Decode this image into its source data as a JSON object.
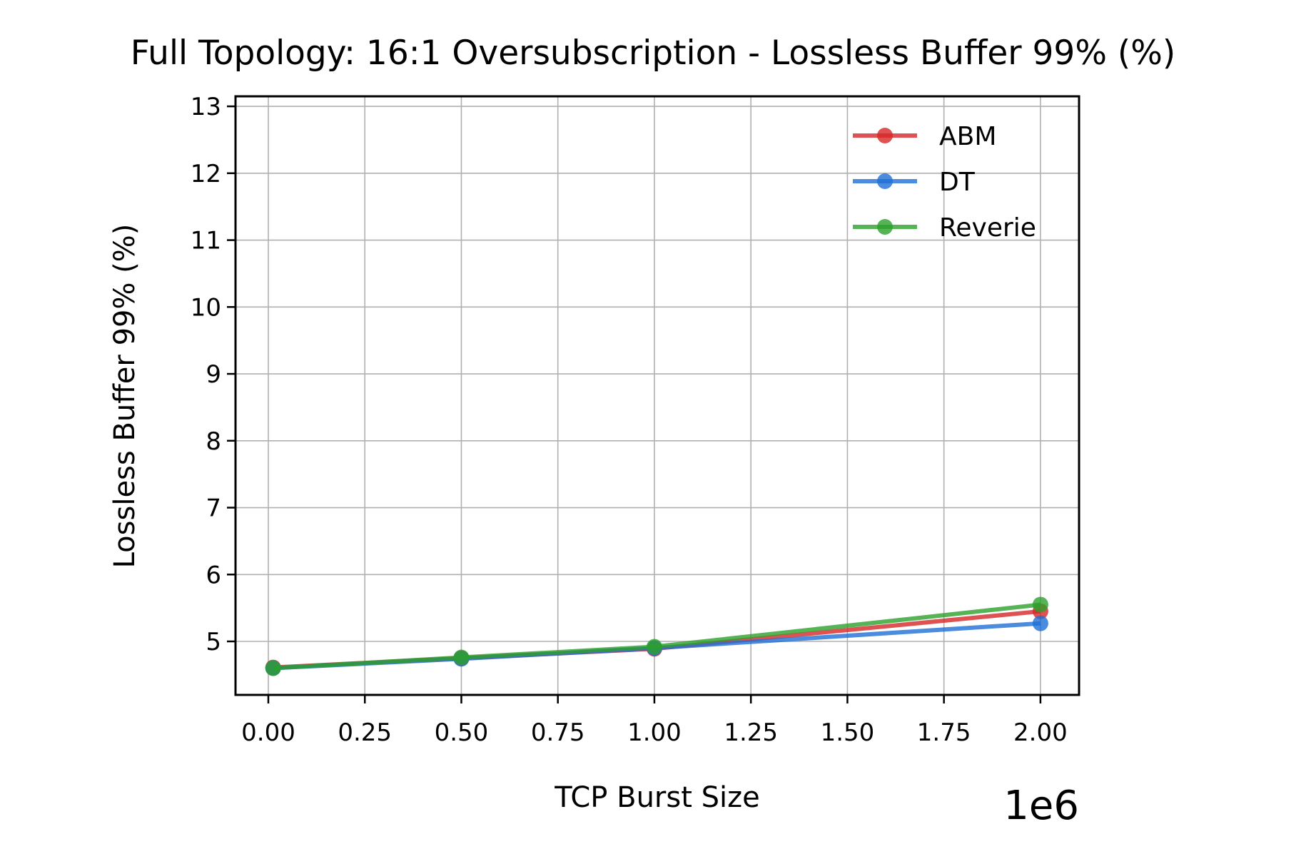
{
  "chart_data": {
    "type": "line",
    "title": "Full Topology: 16:1 Oversubscription - Lossless Buffer 99% (%)",
    "xlabel": "TCP Burst Size",
    "ylabel": "Lossless Buffer 99% (%)",
    "x_offset_label": "1e6",
    "x_scale_factor": 1000000,
    "xlim": [
      -85000,
      2100000
    ],
    "ylim": [
      4.2,
      13.15
    ],
    "x_ticks": [
      0,
      250000,
      500000,
      750000,
      1000000,
      1250000,
      1500000,
      1750000,
      2000000
    ],
    "x_tick_labels": [
      "0.00",
      "0.25",
      "0.50",
      "0.75",
      "1.00",
      "1.25",
      "1.50",
      "1.75",
      "2.00"
    ],
    "y_ticks": [
      5,
      6,
      7,
      8,
      9,
      10,
      11,
      12,
      13
    ],
    "y_tick_labels": [
      "5",
      "6",
      "7",
      "8",
      "9",
      "10",
      "11",
      "12",
      "13"
    ],
    "grid": true,
    "legend_position": "top-right",
    "x": [
      12500,
      500000,
      1000000,
      2000000
    ],
    "series": [
      {
        "name": "ABM",
        "color": "#d62728",
        "values": [
          4.61,
          4.75,
          4.89,
          5.45
        ]
      },
      {
        "name": "DT",
        "color": "#1f6fd6",
        "values": [
          4.6,
          4.74,
          4.9,
          5.27
        ]
      },
      {
        "name": "Reverie",
        "color": "#2ca02c",
        "values": [
          4.6,
          4.76,
          4.92,
          5.55
        ]
      }
    ]
  }
}
